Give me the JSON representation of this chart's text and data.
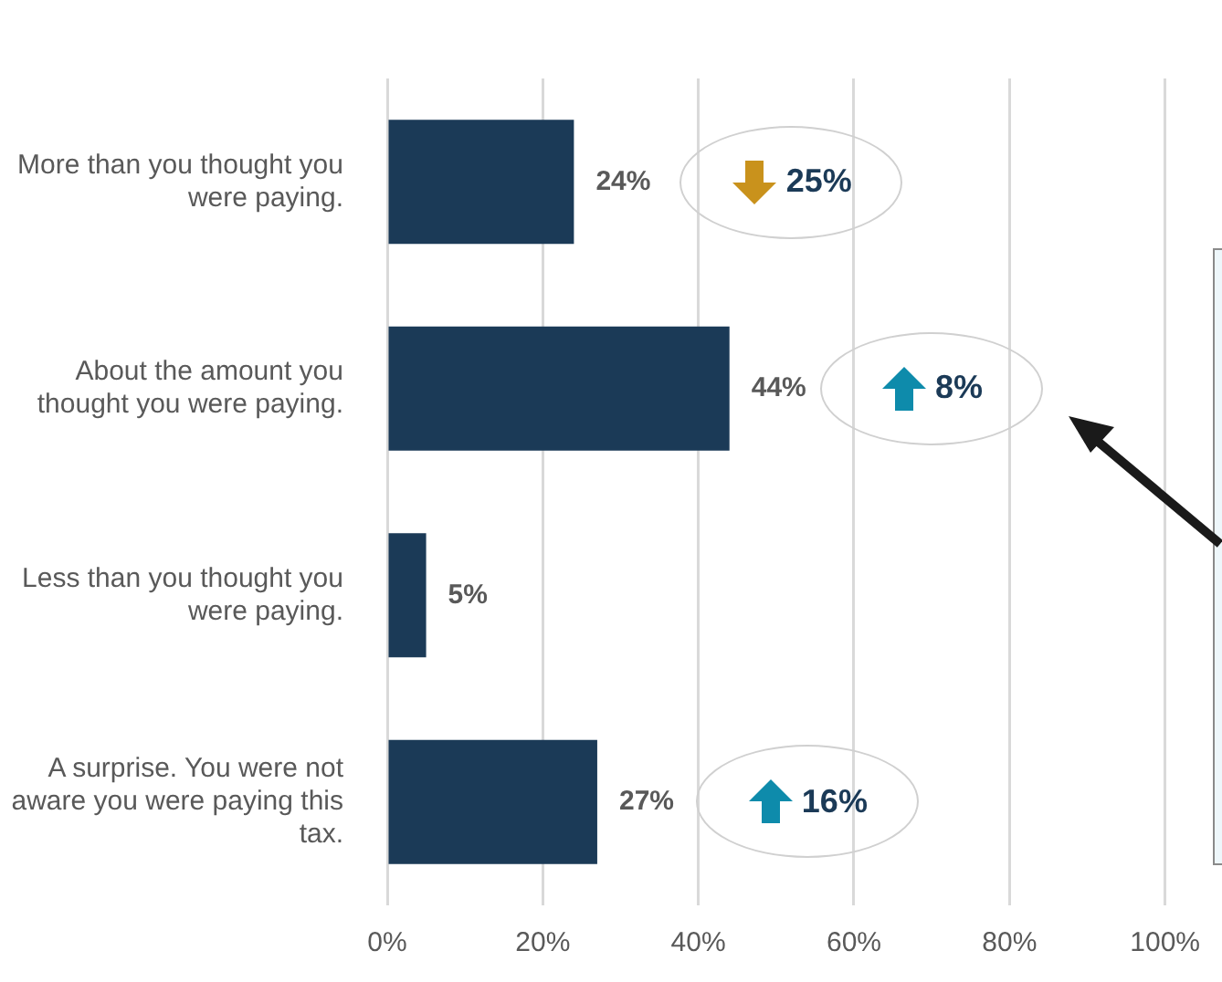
{
  "chart_data": {
    "type": "bar",
    "orientation": "horizontal",
    "categories": [
      "More than you thought you were paying.",
      "About the amount you thought you were paying.",
      "Less than you thought you were paying.",
      "A surprise. You were not aware you were paying this tax."
    ],
    "values": [
      24,
      44,
      5,
      27
    ],
    "color": "#1b3a57",
    "value_labels": [
      "24%",
      "44%",
      "5%",
      "27%"
    ],
    "xlim": [
      0,
      100
    ],
    "xticks": [
      {
        "value": 0,
        "label": "0%"
      },
      {
        "value": 20,
        "label": "20%"
      },
      {
        "value": 40,
        "label": "40%"
      },
      {
        "value": 60,
        "label": "60%"
      },
      {
        "value": 80,
        "label": "80%"
      },
      {
        "value": 100,
        "label": "100%"
      }
    ],
    "grid": "x",
    "legend": false,
    "annotations": [
      "25%",
      "8%",
      "16%"
    ]
  }
}
